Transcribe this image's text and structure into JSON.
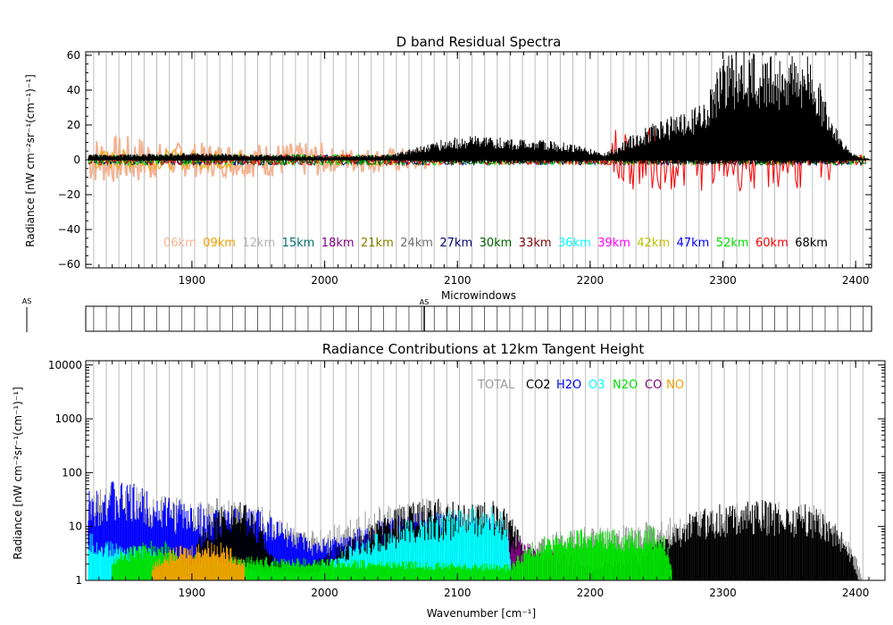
{
  "chart_data": [
    {
      "type": "line",
      "title": "D band Residual Spectra",
      "ylabel": "Radiance [nW cm⁻²sr⁻¹(cm⁻¹)⁻¹]",
      "xlim": [
        1820,
        2412
      ],
      "ylim": [
        -62,
        62
      ],
      "xticks": [
        "1900",
        "2000",
        "2100",
        "2200",
        "2300",
        "2400"
      ],
      "yticks": [
        "60",
        "40",
        "20",
        "0",
        "−20",
        "−40",
        "−60"
      ],
      "series": [
        {
          "name": "06km",
          "color": "#f4b392"
        },
        {
          "name": "09km",
          "color": "#f0a000"
        },
        {
          "name": "12km",
          "color": "#b4b4b4"
        },
        {
          "name": "15km",
          "color": "#007070"
        },
        {
          "name": "18km",
          "color": "#800080"
        },
        {
          "name": "21km",
          "color": "#808000"
        },
        {
          "name": "24km",
          "color": "#707070"
        },
        {
          "name": "27km",
          "color": "#000070"
        },
        {
          "name": "30km",
          "color": "#006000"
        },
        {
          "name": "33km",
          "color": "#800000"
        },
        {
          "name": "36km",
          "color": "#00ffff"
        },
        {
          "name": "39km",
          "color": "#ff00ff"
        },
        {
          "name": "42km",
          "color": "#c0c000"
        },
        {
          "name": "47km",
          "color": "#0000ff"
        },
        {
          "name": "52km",
          "color": "#00e000"
        },
        {
          "name": "60km",
          "color": "#ff0000"
        },
        {
          "name": "68km",
          "color": "#000000"
        }
      ],
      "envelope_68km": {
        "x": [
          1822,
          1900,
          1950,
          2000,
          2050,
          2070,
          2090,
          2110,
          2130,
          2150,
          2170,
          2190,
          2210,
          2222,
          2232,
          2245,
          2260,
          2275,
          2285,
          2292,
          2300,
          2320,
          2340,
          2360,
          2370,
          2375,
          2385,
          2395,
          2405,
          2410
        ],
        "y": [
          3,
          4,
          3,
          2,
          3,
          8,
          12,
          14,
          13,
          12,
          11,
          9,
          4,
          8,
          15,
          20,
          25,
          28,
          35,
          45,
          62,
          62,
          62,
          62,
          55,
          40,
          20,
          5,
          1,
          1
        ]
      }
    },
    {
      "type": "bar",
      "title": "Microwindows",
      "xlim": [
        1820,
        2412
      ],
      "markers": [
        {
          "label": "AS",
          "x": 2075
        }
      ],
      "left_marker_label": "AS"
    },
    {
      "type": "area",
      "title": "Radiance Contributions at 12km Tangent Height",
      "xlabel": "Wavenumber [cm⁻¹]",
      "ylabel": "Radiance [nW cm⁻²sr⁻¹(cm⁻¹)⁻¹]",
      "xlim": [
        1820,
        2412
      ],
      "ylim": [
        1,
        12000
      ],
      "yscale": "log",
      "xticks": [
        "1900",
        "2000",
        "2100",
        "2200",
        "2300",
        "2400"
      ],
      "yticks": [
        {
          "label": "10000",
          "value": 10000
        },
        {
          "label": "1000",
          "value": 1000
        },
        {
          "label": "100",
          "value": 100
        },
        {
          "label": "10",
          "value": 10
        },
        {
          "label": "1",
          "value": 1
        }
      ],
      "series": [
        {
          "name": "TOTAL",
          "color": "#9a9a9a",
          "x": [
            1822,
            1840,
            1870,
            1900,
            1920,
            1940,
            1960,
            1980,
            2000,
            2030,
            2060,
            2080,
            2100,
            2130,
            2145,
            2170,
            2200,
            2240,
            2260,
            2280,
            2300,
            2320,
            2340,
            2360,
            2370,
            2380,
            2395,
            2405
          ],
          "y": [
            40,
            60,
            50,
            30,
            35,
            30,
            20,
            8,
            10,
            20,
            30,
            35,
            30,
            25,
            2,
            8,
            10,
            12,
            15,
            20,
            28,
            32,
            30,
            28,
            25,
            15,
            5,
            1
          ]
        },
        {
          "name": "CO2",
          "color": "#000000",
          "x": [
            1900,
            1915,
            1930,
            1945,
            1960,
            1980,
            2000,
            2030,
            2060,
            2080,
            2100,
            2130,
            2150,
            2200,
            2240,
            2260,
            2280,
            2300,
            2320,
            2340,
            2360,
            2370,
            2380,
            2395,
            2402
          ],
          "y": [
            3,
            15,
            40,
            20,
            3,
            1.5,
            3,
            8,
            25,
            35,
            30,
            30,
            3,
            2,
            3,
            8,
            20,
            28,
            32,
            30,
            28,
            25,
            15,
            4,
            1
          ]
        },
        {
          "name": "H2O",
          "color": "#0000ff",
          "x": [
            1822,
            1835,
            1860,
            1880,
            1900,
            1920,
            1950,
            1970,
            1990,
            2020,
            2050,
            2080,
            2100,
            2130,
            2145
          ],
          "y": [
            50,
            80,
            60,
            40,
            30,
            20,
            25,
            12,
            5,
            8,
            15,
            20,
            20,
            15,
            3
          ]
        },
        {
          "name": "O3",
          "color": "#00ffff",
          "x": [
            1822,
            1830,
            1850,
            1870,
            1890,
            1990,
            2010,
            2040,
            2070,
            2090,
            2110,
            2125,
            2135,
            2140
          ],
          "y": [
            8,
            6,
            5,
            4,
            2,
            1.5,
            3,
            8,
            15,
            20,
            25,
            25,
            18,
            2
          ]
        },
        {
          "name": "N2O",
          "color": "#00e000",
          "x": [
            1840,
            1860,
            1880,
            1890,
            2140,
            2160,
            2180,
            2200,
            2220,
            2235,
            2245,
            2255,
            2262
          ],
          "y": [
            3,
            5,
            6,
            3,
            2,
            6,
            8,
            10,
            9,
            10,
            12,
            8,
            1
          ]
        },
        {
          "name": "CO",
          "color": "#800080",
          "x": [
            2060,
            2080,
            2100,
            2120,
            2140,
            2160,
            2180,
            2200
          ],
          "y": [
            3,
            5,
            6,
            5,
            8,
            4,
            3,
            2
          ]
        },
        {
          "name": "NO",
          "color": "#f0a000",
          "x": [
            1870,
            1885,
            1900,
            1915,
            1930,
            1940
          ],
          "y": [
            2,
            4,
            5,
            6,
            4,
            2
          ]
        }
      ]
    }
  ]
}
